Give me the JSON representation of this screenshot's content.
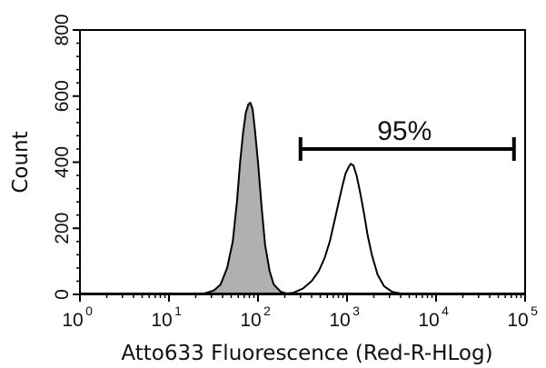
{
  "chart_data": {
    "type": "histogram",
    "title": "",
    "xlabel": "Atto633 Fluorescence (Red-R-HLog)",
    "ylabel": "Count",
    "x_scale": "log",
    "xlim": [
      1,
      100000
    ],
    "ylim": [
      0,
      800
    ],
    "x_ticks": [
      {
        "base": "10",
        "exp": "0",
        "value": 1
      },
      {
        "base": "10",
        "exp": "1",
        "value": 10
      },
      {
        "base": "10",
        "exp": "2",
        "value": 100
      },
      {
        "base": "10",
        "exp": "3",
        "value": 1000
      },
      {
        "base": "10",
        "exp": "4",
        "value": 10000
      },
      {
        "base": "10",
        "exp": "5",
        "value": 100000
      }
    ],
    "y_ticks": [
      "0",
      "200",
      "400",
      "600",
      "800"
    ],
    "y_tick_values": [
      0,
      200,
      400,
      600,
      800
    ],
    "grid": false,
    "series": [
      {
        "fill": "#b0b0b0",
        "points": [
          [
            10,
            0
          ],
          [
            18,
            1
          ],
          [
            25,
            3
          ],
          [
            32,
            12
          ],
          [
            38,
            30
          ],
          [
            45,
            80
          ],
          [
            52,
            160
          ],
          [
            58,
            280
          ],
          [
            63,
            400
          ],
          [
            68,
            490
          ],
          [
            73,
            550
          ],
          [
            78,
            575
          ],
          [
            82,
            580
          ],
          [
            87,
            560
          ],
          [
            92,
            500
          ],
          [
            100,
            400
          ],
          [
            110,
            260
          ],
          [
            120,
            150
          ],
          [
            135,
            70
          ],
          [
            150,
            30
          ],
          [
            180,
            8
          ],
          [
            220,
            1
          ],
          [
            260,
            0
          ]
        ]
      },
      {
        "fill": "#ffffff",
        "points": [
          [
            160,
            0
          ],
          [
            250,
            5
          ],
          [
            320,
            18
          ],
          [
            400,
            40
          ],
          [
            480,
            70
          ],
          [
            560,
            110
          ],
          [
            640,
            160
          ],
          [
            720,
            220
          ],
          [
            800,
            275
          ],
          [
            880,
            325
          ],
          [
            960,
            365
          ],
          [
            1040,
            385
          ],
          [
            1100,
            395
          ],
          [
            1180,
            390
          ],
          [
            1280,
            360
          ],
          [
            1400,
            310
          ],
          [
            1550,
            245
          ],
          [
            1700,
            180
          ],
          [
            1900,
            120
          ],
          [
            2200,
            60
          ],
          [
            2600,
            25
          ],
          [
            3200,
            8
          ],
          [
            4200,
            2
          ],
          [
            5500,
            0
          ]
        ]
      }
    ],
    "gate": {
      "label": "95%",
      "x_range": [
        300,
        75000
      ],
      "y": 440
    }
  }
}
